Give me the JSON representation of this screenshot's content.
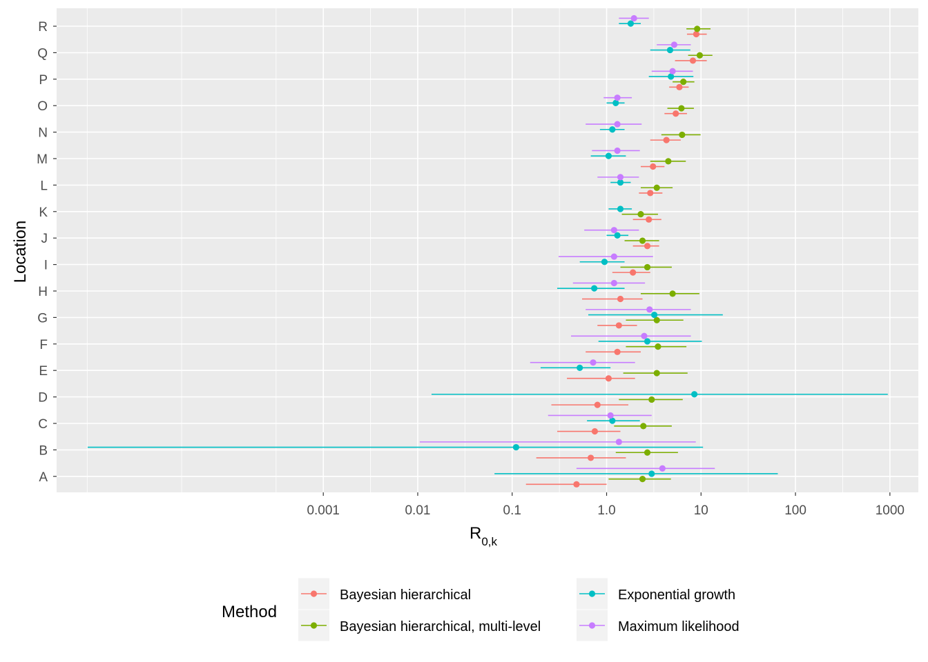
{
  "chart_data": {
    "type": "forest-dot",
    "orientation": "horizontal",
    "xscale": "log10",
    "xlim": [
      1.5e-06,
      2000
    ],
    "xlabel": "R",
    "xlabel_sub": "0,k",
    "ylabel": "Location",
    "x_ticks": [
      {
        "value": 0.001,
        "label": "0.001"
      },
      {
        "value": 0.01,
        "label": "0.01"
      },
      {
        "value": 0.1,
        "label": "0.1"
      },
      {
        "value": 1,
        "label": "1.0"
      },
      {
        "value": 10,
        "label": "10"
      },
      {
        "value": 100,
        "label": "100"
      },
      {
        "value": 1000,
        "label": "1000"
      }
    ],
    "categories": [
      "A",
      "B",
      "C",
      "D",
      "E",
      "F",
      "G",
      "H",
      "I",
      "J",
      "K",
      "L",
      "M",
      "N",
      "O",
      "P",
      "Q",
      "R"
    ],
    "grid": true,
    "legend": {
      "title": "Method",
      "position": "bottom",
      "layout": [
        [
          "Bayesian hierarchical",
          "Exponential growth"
        ],
        [
          "Bayesian hierarchical, multi-level",
          "Maximum likelihood"
        ]
      ]
    },
    "series": [
      {
        "name": "Bayesian hierarchical",
        "color": "#F8766D",
        "offset": -0.3,
        "points": [
          {
            "location": "A",
            "est": 0.48,
            "lo": 0.14,
            "hi": 1.0
          },
          {
            "location": "B",
            "est": 0.68,
            "lo": 0.18,
            "hi": 1.6
          },
          {
            "location": "C",
            "est": 0.75,
            "lo": 0.3,
            "hi": 1.4
          },
          {
            "location": "D",
            "est": 0.8,
            "lo": 0.26,
            "hi": 1.7
          },
          {
            "location": "E",
            "est": 1.05,
            "lo": 0.38,
            "hi": 2.0
          },
          {
            "location": "F",
            "est": 1.3,
            "lo": 0.6,
            "hi": 2.3
          },
          {
            "location": "G",
            "est": 1.35,
            "lo": 0.8,
            "hi": 2.1
          },
          {
            "location": "H",
            "est": 1.4,
            "lo": 0.55,
            "hi": 2.4
          },
          {
            "location": "I",
            "est": 1.9,
            "lo": 1.15,
            "hi": 2.9
          },
          {
            "location": "J",
            "est": 2.7,
            "lo": 1.9,
            "hi": 3.6
          },
          {
            "location": "K",
            "est": 2.8,
            "lo": 1.9,
            "hi": 3.8
          },
          {
            "location": "L",
            "est": 2.9,
            "lo": 2.2,
            "hi": 3.9
          },
          {
            "location": "M",
            "est": 3.1,
            "lo": 2.3,
            "hi": 4.1
          },
          {
            "location": "N",
            "est": 4.3,
            "lo": 2.9,
            "hi": 6.1
          },
          {
            "location": "O",
            "est": 5.4,
            "lo": 4.1,
            "hi": 7.1
          },
          {
            "location": "P",
            "est": 5.9,
            "lo": 4.6,
            "hi": 7.4
          },
          {
            "location": "Q",
            "est": 8.2,
            "lo": 5.3,
            "hi": 11.5
          },
          {
            "location": "R",
            "est": 8.9,
            "lo": 7.1,
            "hi": 11.5
          }
        ]
      },
      {
        "name": "Bayesian hierarchical, multi-level",
        "color": "#7CAE00",
        "offset": -0.1,
        "points": [
          {
            "location": "A",
            "est": 2.4,
            "lo": 1.05,
            "hi": 4.8
          },
          {
            "location": "B",
            "est": 2.7,
            "lo": 1.25,
            "hi": 5.7
          },
          {
            "location": "C",
            "est": 2.45,
            "lo": 1.2,
            "hi": 4.9
          },
          {
            "location": "D",
            "est": 3.0,
            "lo": 1.35,
            "hi": 6.4
          },
          {
            "location": "E",
            "est": 3.4,
            "lo": 1.5,
            "hi": 7.2
          },
          {
            "location": "F",
            "est": 3.5,
            "lo": 1.6,
            "hi": 7.0
          },
          {
            "location": "G",
            "est": 3.4,
            "lo": 1.6,
            "hi": 6.5
          },
          {
            "location": "H",
            "est": 5.0,
            "lo": 2.3,
            "hi": 9.6
          },
          {
            "location": "I",
            "est": 2.7,
            "lo": 1.4,
            "hi": 4.9
          },
          {
            "location": "J",
            "est": 2.4,
            "lo": 1.55,
            "hi": 3.6
          },
          {
            "location": "K",
            "est": 2.3,
            "lo": 1.45,
            "hi": 3.5
          },
          {
            "location": "L",
            "est": 3.4,
            "lo": 2.3,
            "hi": 5.0
          },
          {
            "location": "M",
            "est": 4.5,
            "lo": 2.9,
            "hi": 6.9
          },
          {
            "location": "N",
            "est": 6.3,
            "lo": 3.8,
            "hi": 9.9
          },
          {
            "location": "O",
            "est": 6.2,
            "lo": 4.4,
            "hi": 8.4
          },
          {
            "location": "P",
            "est": 6.5,
            "lo": 5.0,
            "hi": 8.5
          },
          {
            "location": "Q",
            "est": 9.7,
            "lo": 7.3,
            "hi": 13.2
          },
          {
            "location": "R",
            "est": 9.1,
            "lo": 7.0,
            "hi": 12.6
          }
        ]
      },
      {
        "name": "Exponential growth",
        "color": "#00BFC4",
        "offset": 0.1,
        "points": [
          {
            "location": "A",
            "est": 3.0,
            "lo": 0.065,
            "hi": 65
          },
          {
            "location": "B",
            "est": 0.11,
            "lo": 3.2e-06,
            "hi": 10.5
          },
          {
            "location": "C",
            "est": 1.15,
            "lo": 0.62,
            "hi": 2.25
          },
          {
            "location": "D",
            "est": 8.5,
            "lo": 0.014,
            "hi": 950
          },
          {
            "location": "E",
            "est": 0.52,
            "lo": 0.2,
            "hi": 1.1
          },
          {
            "location": "F",
            "est": 2.7,
            "lo": 0.82,
            "hi": 10.2
          },
          {
            "location": "G",
            "est": 3.2,
            "lo": 0.64,
            "hi": 17
          },
          {
            "location": "H",
            "est": 0.74,
            "lo": 0.3,
            "hi": 1.55
          },
          {
            "location": "I",
            "est": 0.95,
            "lo": 0.52,
            "hi": 1.55
          },
          {
            "location": "J",
            "est": 1.3,
            "lo": 1.0,
            "hi": 1.7
          },
          {
            "location": "K",
            "est": 1.4,
            "lo": 1.05,
            "hi": 1.85
          },
          {
            "location": "L",
            "est": 1.4,
            "lo": 1.1,
            "hi": 1.8
          },
          {
            "location": "M",
            "est": 1.05,
            "lo": 0.68,
            "hi": 1.6
          },
          {
            "location": "N",
            "est": 1.15,
            "lo": 0.85,
            "hi": 1.55
          },
          {
            "location": "O",
            "est": 1.25,
            "lo": 1.0,
            "hi": 1.55
          },
          {
            "location": "P",
            "est": 4.8,
            "lo": 2.8,
            "hi": 8.3
          },
          {
            "location": "Q",
            "est": 4.7,
            "lo": 2.9,
            "hi": 7.7
          },
          {
            "location": "R",
            "est": 1.8,
            "lo": 1.35,
            "hi": 2.3
          }
        ]
      },
      {
        "name": "Maximum likelihood",
        "color": "#C77CFF",
        "offset": 0.3,
        "points": [
          {
            "location": "A",
            "est": 3.9,
            "lo": 0.48,
            "hi": 14
          },
          {
            "location": "B",
            "est": 1.35,
            "lo": 0.0105,
            "hi": 8.8
          },
          {
            "location": "C",
            "est": 1.1,
            "lo": 0.24,
            "hi": 3.0
          },
          {
            "location": "E",
            "est": 0.72,
            "lo": 0.155,
            "hi": 2.0
          },
          {
            "location": "F",
            "est": 2.5,
            "lo": 0.42,
            "hi": 7.8
          },
          {
            "location": "G",
            "est": 2.85,
            "lo": 0.6,
            "hi": 7.8
          },
          {
            "location": "H",
            "est": 1.2,
            "lo": 0.44,
            "hi": 2.55
          },
          {
            "location": "I",
            "est": 1.2,
            "lo": 0.31,
            "hi": 3.1
          },
          {
            "location": "J",
            "est": 1.2,
            "lo": 0.58,
            "hi": 2.2
          },
          {
            "location": "L",
            "est": 1.4,
            "lo": 0.8,
            "hi": 2.2
          },
          {
            "location": "M",
            "est": 1.3,
            "lo": 0.7,
            "hi": 2.25
          },
          {
            "location": "N",
            "est": 1.3,
            "lo": 0.6,
            "hi": 2.35
          },
          {
            "location": "O",
            "est": 1.3,
            "lo": 0.93,
            "hi": 1.85
          },
          {
            "location": "P",
            "est": 5.0,
            "lo": 3.0,
            "hi": 8.2
          },
          {
            "location": "Q",
            "est": 5.2,
            "lo": 3.4,
            "hi": 7.8
          },
          {
            "location": "R",
            "est": 1.95,
            "lo": 1.35,
            "hi": 2.8
          }
        ]
      }
    ]
  }
}
